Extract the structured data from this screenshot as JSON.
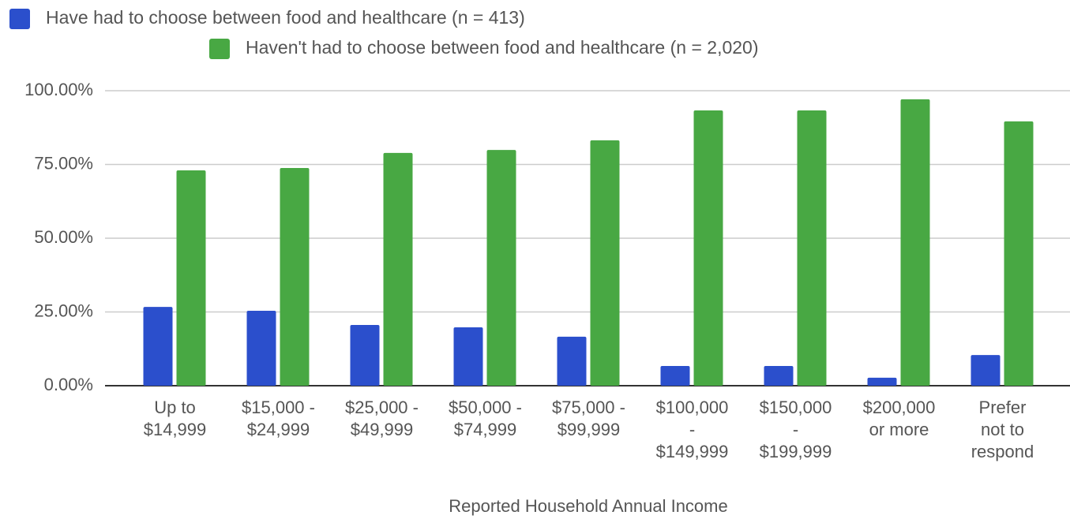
{
  "chart_data": {
    "type": "bar",
    "x_label": "Reported Household Annual Income",
    "categories": [
      [
        "Up to",
        "$14,999"
      ],
      [
        "$15,000 -",
        "$24,999"
      ],
      [
        "$25,000 -",
        "$49,999"
      ],
      [
        "$50,000 -",
        "$74,999"
      ],
      [
        "$75,000 -",
        "$99,999"
      ],
      [
        "$100,000",
        "-",
        "$149,999"
      ],
      [
        "$150,000",
        "-",
        "$199,999"
      ],
      [
        "$200,000",
        "or more"
      ],
      [
        "Prefer",
        "not to",
        "respond"
      ]
    ],
    "series": [
      {
        "name": "Have had to choose between food and healthcare (n = 413)",
        "color": "#2b4fcc",
        "values": [
          26.7,
          25.4,
          20.6,
          19.8,
          16.6,
          6.7,
          6.7,
          2.7,
          10.4
        ]
      },
      {
        "name": "Haven't had to choose between food and healthcare (n = 2,020)",
        "color": "#48a843",
        "values": [
          73.0,
          73.8,
          78.9,
          79.9,
          83.2,
          93.3,
          93.3,
          97.1,
          89.6
        ]
      }
    ],
    "ylim": [
      0,
      100
    ],
    "yticks": [
      {
        "value": 0,
        "label": "0.00%"
      },
      {
        "value": 25,
        "label": "25.00%"
      },
      {
        "value": 50,
        "label": "50.00%"
      },
      {
        "value": 75,
        "label": "75.00%"
      },
      {
        "value": 100,
        "label": "100.00%"
      }
    ],
    "grid": true
  }
}
